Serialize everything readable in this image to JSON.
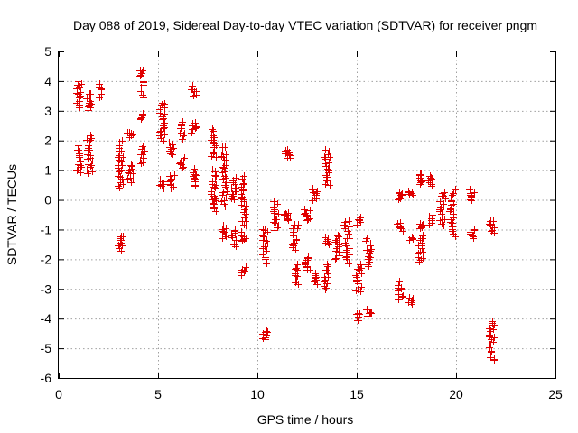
{
  "chart_data": {
    "type": "scatter",
    "title": "Day 088 of 2019, Sidereal Day-to-day VTEC variation (SDTVAR) for receiver pngm",
    "xlabel": "GPS time / hours",
    "ylabel": "SDTVAR / TECUs",
    "xlim": [
      0,
      25
    ],
    "ylim": [
      -6,
      5
    ],
    "xticks": [
      "0",
      "5",
      "10",
      "15",
      "20",
      "25"
    ],
    "yticks": [
      "-6",
      "-5",
      "-4",
      "-3",
      "-2",
      "-1",
      "0",
      "1",
      "2",
      "3",
      "4",
      "5"
    ],
    "grid": true,
    "marker": "plus",
    "color": "#e00000",
    "clusters": [
      {
        "x": 1.0,
        "y0": 3.1,
        "y1": 4.0
      },
      {
        "x": 1.0,
        "y0": 0.9,
        "y1": 1.8
      },
      {
        "x": 1.55,
        "y0": 3.0,
        "y1": 3.6
      },
      {
        "x": 1.55,
        "y0": 0.9,
        "y1": 2.2
      },
      {
        "x": 2.1,
        "y0": 3.4,
        "y1": 3.9
      },
      {
        "x": 3.1,
        "y0": 0.4,
        "y1": 2.0
      },
      {
        "x": 3.1,
        "y0": -1.7,
        "y1": -1.2
      },
      {
        "x": 3.6,
        "y0": 0.6,
        "y1": 1.2
      },
      {
        "x": 3.6,
        "y0": 2.15,
        "y1": 2.3
      },
      {
        "x": 4.2,
        "y0": 3.5,
        "y1": 4.4
      },
      {
        "x": 4.2,
        "y0": 2.7,
        "y1": 2.9
      },
      {
        "x": 4.2,
        "y0": 1.2,
        "y1": 1.8
      },
      {
        "x": 5.2,
        "y0": 2.0,
        "y1": 3.3
      },
      {
        "x": 5.2,
        "y0": 0.4,
        "y1": 0.7
      },
      {
        "x": 5.7,
        "y0": 1.5,
        "y1": 1.9
      },
      {
        "x": 5.7,
        "y0": 0.4,
        "y1": 0.8
      },
      {
        "x": 6.2,
        "y0": 2.1,
        "y1": 2.6
      },
      {
        "x": 6.2,
        "y0": 1.1,
        "y1": 1.4
      },
      {
        "x": 6.8,
        "y0": 3.5,
        "y1": 3.8
      },
      {
        "x": 6.8,
        "y0": 2.3,
        "y1": 2.6
      },
      {
        "x": 6.8,
        "y0": 0.5,
        "y1": 1.0
      },
      {
        "x": 7.8,
        "y0": 1.4,
        "y1": 2.4
      },
      {
        "x": 7.8,
        "y0": -0.4,
        "y1": 1.0
      },
      {
        "x": 8.3,
        "y0": -1.3,
        "y1": -0.9
      },
      {
        "x": 8.3,
        "y0": -0.2,
        "y1": 1.8
      },
      {
        "x": 8.8,
        "y0": 0.0,
        "y1": 0.7
      },
      {
        "x": 8.8,
        "y0": -1.6,
        "y1": -1.0
      },
      {
        "x": 9.3,
        "y0": -0.9,
        "y1": 0.8
      },
      {
        "x": 9.3,
        "y0": -1.4,
        "y1": -1.1
      },
      {
        "x": 9.3,
        "y0": -2.5,
        "y1": -2.3
      },
      {
        "x": 10.4,
        "y0": -4.7,
        "y1": -4.4
      },
      {
        "x": 10.4,
        "y0": -2.1,
        "y1": -0.9
      },
      {
        "x": 10.9,
        "y0": -1.0,
        "y1": -0.1
      },
      {
        "x": 11.5,
        "y0": 1.4,
        "y1": 1.7
      },
      {
        "x": 11.5,
        "y0": -0.7,
        "y1": -0.4
      },
      {
        "x": 11.9,
        "y0": -1.7,
        "y1": -0.8
      },
      {
        "x": 11.9,
        "y0": -2.8,
        "y1": -2.2
      },
      {
        "x": 12.5,
        "y0": -0.7,
        "y1": -0.3
      },
      {
        "x": 12.5,
        "y0": -2.4,
        "y1": -1.9
      },
      {
        "x": 12.9,
        "y0": 0.0,
        "y1": 0.4
      },
      {
        "x": 12.9,
        "y0": -2.8,
        "y1": -2.5
      },
      {
        "x": 13.5,
        "y0": 0.5,
        "y1": 1.7
      },
      {
        "x": 13.5,
        "y0": -1.5,
        "y1": -1.3
      },
      {
        "x": 13.5,
        "y0": -3.0,
        "y1": -2.2
      },
      {
        "x": 14.0,
        "y0": -2.0,
        "y1": -1.2
      },
      {
        "x": 14.5,
        "y0": -2.1,
        "y1": -0.7
      },
      {
        "x": 15.1,
        "y0": -3.1,
        "y1": -2.2
      },
      {
        "x": 15.1,
        "y0": -4.1,
        "y1": -3.8
      },
      {
        "x": 15.1,
        "y0": -0.8,
        "y1": -0.6
      },
      {
        "x": 15.6,
        "y0": -3.9,
        "y1": -3.7
      },
      {
        "x": 15.6,
        "y0": -2.2,
        "y1": -1.3
      },
      {
        "x": 17.2,
        "y0": -3.4,
        "y1": -2.8
      },
      {
        "x": 17.2,
        "y0": -1.0,
        "y1": -0.8
      },
      {
        "x": 17.2,
        "y0": 0.0,
        "y1": 0.3
      },
      {
        "x": 17.7,
        "y0": -3.5,
        "y1": -3.3
      },
      {
        "x": 17.7,
        "y0": -1.3,
        "y1": -1.3
      },
      {
        "x": 17.7,
        "y0": 0.2,
        "y1": 0.3
      },
      {
        "x": 18.2,
        "y0": 0.5,
        "y1": 0.9
      },
      {
        "x": 18.2,
        "y0": -2.1,
        "y1": -1.2
      },
      {
        "x": 18.2,
        "y0": -1.0,
        "y1": -0.8
      },
      {
        "x": 18.7,
        "y0": 0.5,
        "y1": 0.8
      },
      {
        "x": 18.7,
        "y0": -0.8,
        "y1": -0.5
      },
      {
        "x": 19.3,
        "y0": -0.9,
        "y1": 0.3
      },
      {
        "x": 19.8,
        "y0": -1.2,
        "y1": 0.3
      },
      {
        "x": 20.8,
        "y0": -1.3,
        "y1": -1.0
      },
      {
        "x": 20.8,
        "y0": 0.0,
        "y1": 0.3
      },
      {
        "x": 21.8,
        "y0": -5.4,
        "y1": -4.1
      },
      {
        "x": 21.8,
        "y0": -1.1,
        "y1": -0.7
      }
    ]
  }
}
